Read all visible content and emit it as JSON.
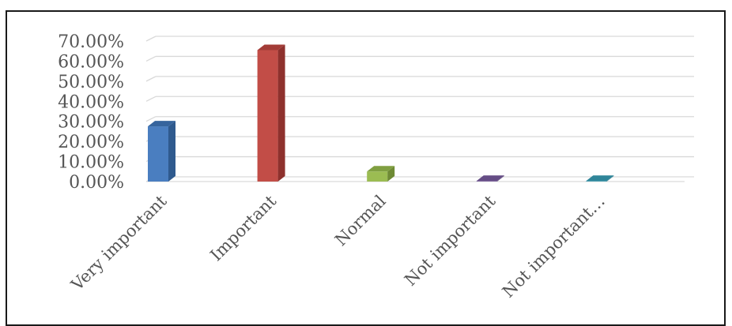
{
  "chart_data": {
    "type": "bar",
    "categories": [
      "Very important",
      "Important",
      "Normal",
      "Not important",
      "Not important…"
    ],
    "values": [
      27.5,
      65.5,
      5.0,
      0.3,
      0.3
    ],
    "ylim": [
      0,
      70
    ],
    "yticks": [
      "0.00%",
      "10.00%",
      "20.00%",
      "30.00%",
      "40.00%",
      "50.00%",
      "60.00%",
      "70.00%"
    ],
    "grid": true,
    "legend": "none",
    "colors": {
      "front": [
        "#4a7ec0",
        "#c24d47",
        "#9bbc52",
        "#7d5fa0",
        "#3ea0b5"
      ],
      "side": [
        "#2f5a8e",
        "#8e312d",
        "#6e8a34",
        "#553f74",
        "#267789"
      ],
      "top": [
        "#36649d",
        "#a33c37",
        "#809f41",
        "#654d85",
        "#2f8599"
      ],
      "grid": "#d9d9d9",
      "text": "#555555"
    }
  }
}
